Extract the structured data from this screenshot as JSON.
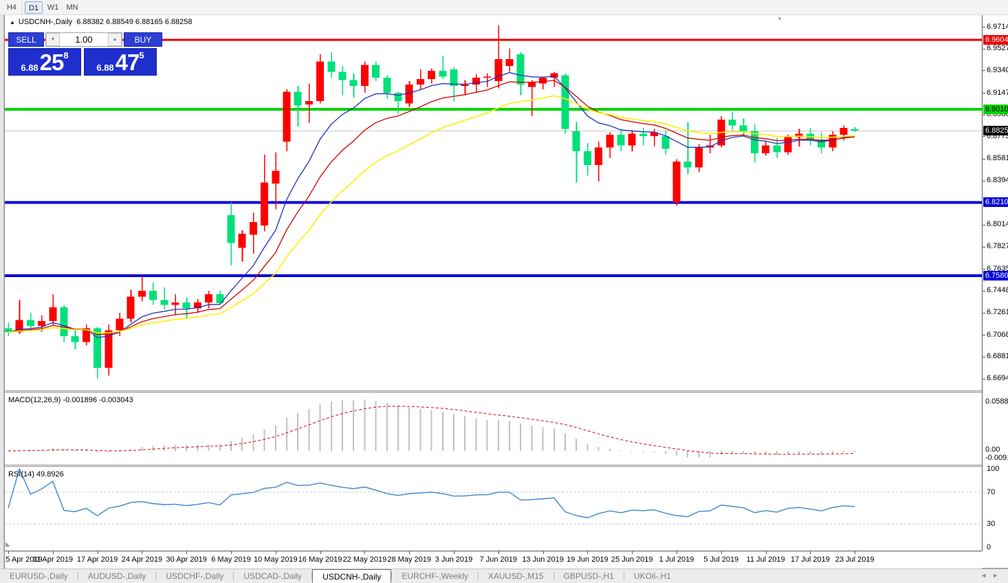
{
  "colors": {
    "up": "#ff0000",
    "down": "#00e07a",
    "ma_fast": "#2030c0",
    "ma_mid": "#d10000",
    "ma_slow": "#ffee00",
    "price_line": "#c8c8c8",
    "macd_bar": "#c0c0c0",
    "macd_signal": "#e00000",
    "rsi_line": "#3e86cc",
    "rsi_grid": "#c9c9c9"
  },
  "toolbar": {
    "timeframes": [
      {
        "label": "H4",
        "active": false
      },
      {
        "label": "D1",
        "active": true
      },
      {
        "label": "W1",
        "active": false
      },
      {
        "label": "MN",
        "active": false
      }
    ]
  },
  "title_bar": {
    "marker": "▲",
    "symbol": "USDCNH-,Daily",
    "ohlc_text": "6.88382 6.88549 6.88165 6.88258"
  },
  "trade_panel": {
    "sell_label": "SELL",
    "buy_label": "BUY",
    "volume": "1.00",
    "volume_down_icon": "▼",
    "volume_up_icon": "▲",
    "sell_price": {
      "base": "6.88",
      "big": "25",
      "sup": "8"
    },
    "buy_price": {
      "base": "6.88",
      "big": "47",
      "sup": "5"
    }
  },
  "price_axis": {
    "ticks": [
      "6.97140",
      "6.95270",
      "6.93400",
      "6.91475",
      "6.89605",
      "6.87735",
      "6.85810",
      "6.83940",
      "6.80145",
      "6.78275",
      "6.76350",
      "6.74480",
      "6.72610",
      "6.70685",
      "6.68815",
      "6.66945"
    ],
    "badges": [
      {
        "text": "6.96044",
        "price": 6.96044,
        "bg": "#ee0000",
        "fg": "#ffffff"
      },
      {
        "text": "6.90100",
        "price": 6.901,
        "bg": "#00d400",
        "fg": "#000000"
      },
      {
        "text": "6.88258",
        "price": 6.88258,
        "bg": "#000000",
        "fg": "#ffffff"
      },
      {
        "text": "6.82103",
        "price": 6.82103,
        "bg": "#0000dd",
        "fg": "#ffffff"
      },
      {
        "text": "6.75804",
        "price": 6.75804,
        "bg": "#0000dd",
        "fg": "#ffffff"
      }
    ]
  },
  "macd_panel": {
    "label": "MACD(12,26,9) -0.001896 -0.003043",
    "axis_max": "0.058851",
    "axis_zero": "0.00",
    "axis_min": "-0.009116"
  },
  "rsi_panel": {
    "label": "RSI(14) 49.8926",
    "axis_ticks": [
      "100",
      "70",
      "30",
      "0"
    ]
  },
  "tabs": {
    "items": [
      {
        "label": "EURUSD-,Daily",
        "active": false
      },
      {
        "label": "AUDUSD-,Daily",
        "active": false
      },
      {
        "label": "USDCHF-,Daily",
        "active": false
      },
      {
        "label": "USDCAD-,Daily",
        "active": false
      },
      {
        "label": "USDCNH-,Daily",
        "active": true
      },
      {
        "label": "EURCHF-,Weekly",
        "active": false
      },
      {
        "label": "XAUUSD-,M15",
        "active": false
      },
      {
        "label": "GBPUSD-,H1",
        "active": false
      },
      {
        "label": "UKOil-,H1",
        "active": false
      }
    ],
    "scroll_left_icon": "◄",
    "scroll_right_icon": "►"
  },
  "misc": {
    "shift_marker_icon": "▼",
    "history_marker_icon": "◣"
  },
  "chart_data": {
    "type": "candlestick",
    "symbol": "USDCNH",
    "timeframe": "Daily",
    "price_at_top": 6.9794,
    "price_at_bottom": 6.6677,
    "current_price": 6.88258,
    "hlines": [
      {
        "price": 6.96044,
        "color": "#ee0000",
        "width": 3
      },
      {
        "price": 6.901,
        "color": "#00d400",
        "width": 4
      },
      {
        "price": 6.82103,
        "color": "#0000dd",
        "width": 4
      },
      {
        "price": 6.75804,
        "color": "#0000dd",
        "width": 4
      }
    ],
    "moving_averages": [
      {
        "type": "EMA",
        "period": 8,
        "color_key": "ma_fast"
      },
      {
        "type": "EMA",
        "period": 13,
        "color_key": "ma_mid"
      },
      {
        "type": "EMA",
        "period": 21,
        "color_key": "ma_slow"
      }
    ],
    "macd": {
      "fast": 12,
      "slow": 26,
      "signal": 9,
      "scale_max": 0.058851,
      "scale_min": -0.009116
    },
    "rsi": {
      "period": 14,
      "levels": [
        70,
        30
      ],
      "current": 49.8926
    },
    "tick_every": 4,
    "x_tick_labels": [
      "5 Apr 2019",
      "11 Apr 2019",
      "17 Apr 2019",
      "24 Apr 2019",
      "30 Apr 2019",
      "6 May 2019",
      "10 May 2019",
      "16 May 2019",
      "22 May 2019",
      "28 May 2019",
      "3 Jun 2019",
      "7 Jun 2019",
      "13 Jun 2019",
      "19 Jun 2019",
      "25 Jun 2019",
      "1 Jul 2019",
      "5 Jul 2019",
      "11 Jul 2019",
      "17 Jul 2019",
      "23 Jul 2019"
    ],
    "dates": [
      "5 Apr 2019",
      "8 Apr 2019",
      "9 Apr 2019",
      "10 Apr 2019",
      "11 Apr 2019",
      "12 Apr 2019",
      "15 Apr 2019",
      "16 Apr 2019",
      "17 Apr 2019",
      "18 Apr 2019",
      "22 Apr 2019",
      "23 Apr 2019",
      "24 Apr 2019",
      "25 Apr 2019",
      "26 Apr 2019",
      "29 Apr 2019",
      "30 Apr 2019",
      "1 May 2019",
      "2 May 2019",
      "3 May 2019",
      "6 May 2019",
      "7 May 2019",
      "8 May 2019",
      "9 May 2019",
      "10 May 2019",
      "13 May 2019",
      "14 May 2019",
      "15 May 2019",
      "16 May 2019",
      "17 May 2019",
      "20 May 2019",
      "21 May 2019",
      "22 May 2019",
      "23 May 2019",
      "24 May 2019",
      "27 May 2019",
      "28 May 2019",
      "29 May 2019",
      "30 May 2019",
      "31 May 2019",
      "3 Jun 2019",
      "4 Jun 2019",
      "5 Jun 2019",
      "6 Jun 2019",
      "7 Jun 2019",
      "10 Jun 2019",
      "11 Jun 2019",
      "12 Jun 2019",
      "13 Jun 2019",
      "14 Jun 2019",
      "17 Jun 2019",
      "18 Jun 2019",
      "19 Jun 2019",
      "20 Jun 2019",
      "21 Jun 2019",
      "24 Jun 2019",
      "25 Jun 2019",
      "26 Jun 2019",
      "27 Jun 2019",
      "28 Jun 2019",
      "1 Jul 2019",
      "2 Jul 2019",
      "3 Jul 2019",
      "4 Jul 2019",
      "5 Jul 2019",
      "8 Jul 2019",
      "9 Jul 2019",
      "10 Jul 2019",
      "11 Jul 2019",
      "12 Jul 2019",
      "15 Jul 2019",
      "16 Jul 2019",
      "17 Jul 2019",
      "18 Jul 2019",
      "19 Jul 2019",
      "22 Jul 2019",
      "23 Jul 2019"
    ],
    "ohlc": [
      [
        6.713,
        6.718,
        6.706,
        6.7095
      ],
      [
        6.7095,
        6.737,
        6.708,
        6.72
      ],
      [
        6.72,
        6.726,
        6.712,
        6.715
      ],
      [
        6.715,
        6.724,
        6.71,
        6.719
      ],
      [
        6.719,
        6.742,
        6.715,
        6.731
      ],
      [
        6.731,
        6.733,
        6.701,
        6.706
      ],
      [
        6.706,
        6.712,
        6.695,
        6.701
      ],
      [
        6.701,
        6.716,
        6.698,
        6.713
      ],
      [
        6.713,
        6.714,
        6.6695,
        6.679
      ],
      [
        6.679,
        6.716,
        6.672,
        6.711
      ],
      [
        6.711,
        6.726,
        6.706,
        6.721
      ],
      [
        6.721,
        6.746,
        6.718,
        6.74
      ],
      [
        6.74,
        6.758,
        6.736,
        6.745
      ],
      [
        6.745,
        6.752,
        6.733,
        6.737
      ],
      [
        6.737,
        6.748,
        6.729,
        6.733
      ],
      [
        6.733,
        6.742,
        6.724,
        6.735
      ],
      [
        6.735,
        6.739,
        6.721,
        6.73
      ],
      [
        6.73,
        6.738,
        6.726,
        6.735
      ],
      [
        6.735,
        6.745,
        6.73,
        6.742
      ],
      [
        6.742,
        6.745,
        6.733,
        6.7345
      ],
      [
        6.81,
        6.821,
        6.767,
        6.786
      ],
      [
        6.782,
        6.797,
        6.77,
        6.794
      ],
      [
        6.793,
        6.812,
        6.777,
        6.804
      ],
      [
        6.801,
        6.862,
        6.796,
        6.838
      ],
      [
        6.837,
        6.864,
        6.815,
        6.848
      ],
      [
        6.873,
        6.918,
        6.865,
        6.916
      ],
      [
        6.916,
        6.921,
        6.886,
        6.904
      ],
      [
        6.905,
        6.923,
        6.889,
        6.908
      ],
      [
        6.908,
        6.948,
        6.906,
        6.942
      ],
      [
        6.942,
        6.95,
        6.928,
        6.933
      ],
      [
        6.933,
        6.938,
        6.913,
        6.926
      ],
      [
        6.926,
        6.932,
        6.911,
        6.921
      ],
      [
        6.921,
        6.942,
        6.915,
        6.939
      ],
      [
        6.939,
        6.942,
        6.925,
        6.928
      ],
      [
        6.928,
        6.93,
        6.91,
        6.915
      ],
      [
        6.915,
        6.916,
        6.897,
        6.908
      ],
      [
        6.906,
        6.925,
        6.903,
        6.922
      ],
      [
        6.922,
        6.935,
        6.918,
        6.927
      ],
      [
        6.927,
        6.936,
        6.923,
        6.934
      ],
      [
        6.934,
        6.947,
        6.927,
        6.929
      ],
      [
        6.935,
        6.937,
        6.908,
        6.921
      ],
      [
        6.921,
        6.926,
        6.913,
        6.922
      ],
      [
        6.922,
        6.931,
        6.915,
        6.928
      ],
      [
        6.928,
        6.932,
        6.92,
        6.929
      ],
      [
        6.925,
        6.973,
        6.919,
        6.944
      ],
      [
        6.938,
        6.953,
        6.933,
        6.944
      ],
      [
        6.948,
        6.95,
        6.913,
        6.922
      ],
      [
        6.92,
        6.926,
        6.895,
        6.924
      ],
      [
        6.923,
        6.929,
        6.918,
        6.928
      ],
      [
        6.928,
        6.933,
        6.92,
        6.932
      ],
      [
        6.93,
        6.932,
        6.88,
        6.884
      ],
      [
        6.882,
        6.89,
        6.838,
        6.865
      ],
      [
        6.865,
        6.872,
        6.844,
        6.853
      ],
      [
        6.853,
        6.873,
        6.839,
        6.868
      ],
      [
        6.868,
        6.881,
        6.859,
        6.879
      ],
      [
        6.879,
        6.884,
        6.865,
        6.87
      ],
      [
        6.87,
        6.882,
        6.865,
        6.88
      ],
      [
        6.88,
        6.885,
        6.87,
        6.878
      ],
      [
        6.878,
        6.884,
        6.869,
        6.881
      ],
      [
        6.878,
        6.883,
        6.862,
        6.867
      ],
      [
        6.821,
        6.858,
        6.818,
        6.856
      ],
      [
        6.856,
        6.89,
        6.845,
        6.851
      ],
      [
        6.851,
        6.871,
        6.847,
        6.868
      ],
      [
        6.868,
        6.879,
        6.863,
        6.87
      ],
      [
        6.87,
        6.895,
        6.868,
        6.892
      ],
      [
        6.892,
        6.899,
        6.883,
        6.887
      ],
      [
        6.887,
        6.893,
        6.878,
        6.882
      ],
      [
        6.882,
        6.888,
        6.855,
        6.863
      ],
      [
        6.863,
        6.873,
        6.861,
        6.87
      ],
      [
        6.87,
        6.876,
        6.859,
        6.864
      ],
      [
        6.864,
        6.879,
        6.862,
        6.877
      ],
      [
        6.877,
        6.884,
        6.869,
        6.88
      ],
      [
        6.88,
        6.885,
        6.87,
        6.875
      ],
      [
        6.875,
        6.881,
        6.863,
        6.868
      ],
      [
        6.868,
        6.882,
        6.865,
        6.879
      ],
      [
        6.879,
        6.887,
        6.874,
        6.885
      ],
      [
        6.88382,
        6.88549,
        6.88165,
        6.88258
      ]
    ]
  }
}
